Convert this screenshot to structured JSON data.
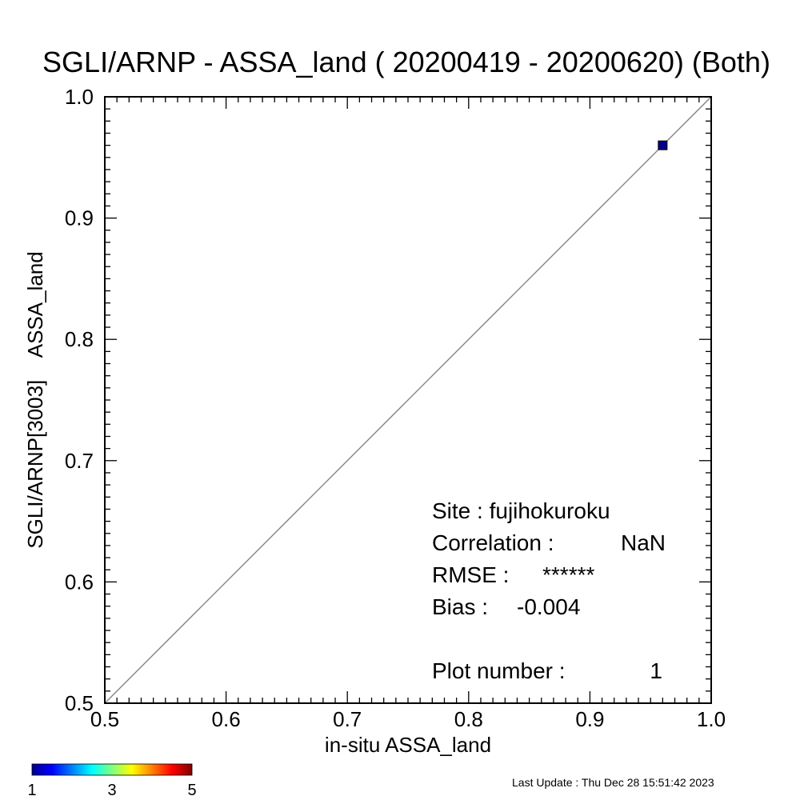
{
  "chart_data": {
    "type": "scatter",
    "title": "SGLI/ARNP - ASSA_land ( 20200419 - 20200620) (Both)",
    "xlabel": "in-situ ASSA_land",
    "ylabel": "SGLI/ARNP[3003]    ASSA_land",
    "xlim": [
      0.5,
      1.0
    ],
    "ylim": [
      0.5,
      1.0
    ],
    "x_ticks": [
      "0.5",
      "0.6",
      "0.7",
      "0.8",
      "0.9",
      "1.0"
    ],
    "y_ticks": [
      "0.5",
      "0.6",
      "0.7",
      "0.8",
      "0.9",
      "1.0"
    ],
    "one_to_one_line": true,
    "grid": false,
    "points": [
      {
        "x": 0.96,
        "y": 0.96,
        "count": 1,
        "color": "#00008b"
      }
    ],
    "stats": {
      "site_line": "Site : fujihokuroku",
      "correlation_label": "Correlation :",
      "correlation_value": "NaN",
      "rmse_label": "RMSE :",
      "rmse_value": "******",
      "bias_label": "Bias :",
      "bias_value": "-0.004",
      "plot_number_label": "Plot number :",
      "plot_number_value": "1"
    },
    "colorbar": {
      "ticks": [
        "1",
        "3",
        "5"
      ],
      "colors": [
        "#00008f",
        "#0000ff",
        "#0080ff",
        "#00ffff",
        "#80ff80",
        "#ffff00",
        "#ff8000",
        "#ff0000",
        "#800000"
      ]
    }
  },
  "footer": {
    "last_update": "Last Update : Thu Dec 28 15:51:42 2023"
  }
}
